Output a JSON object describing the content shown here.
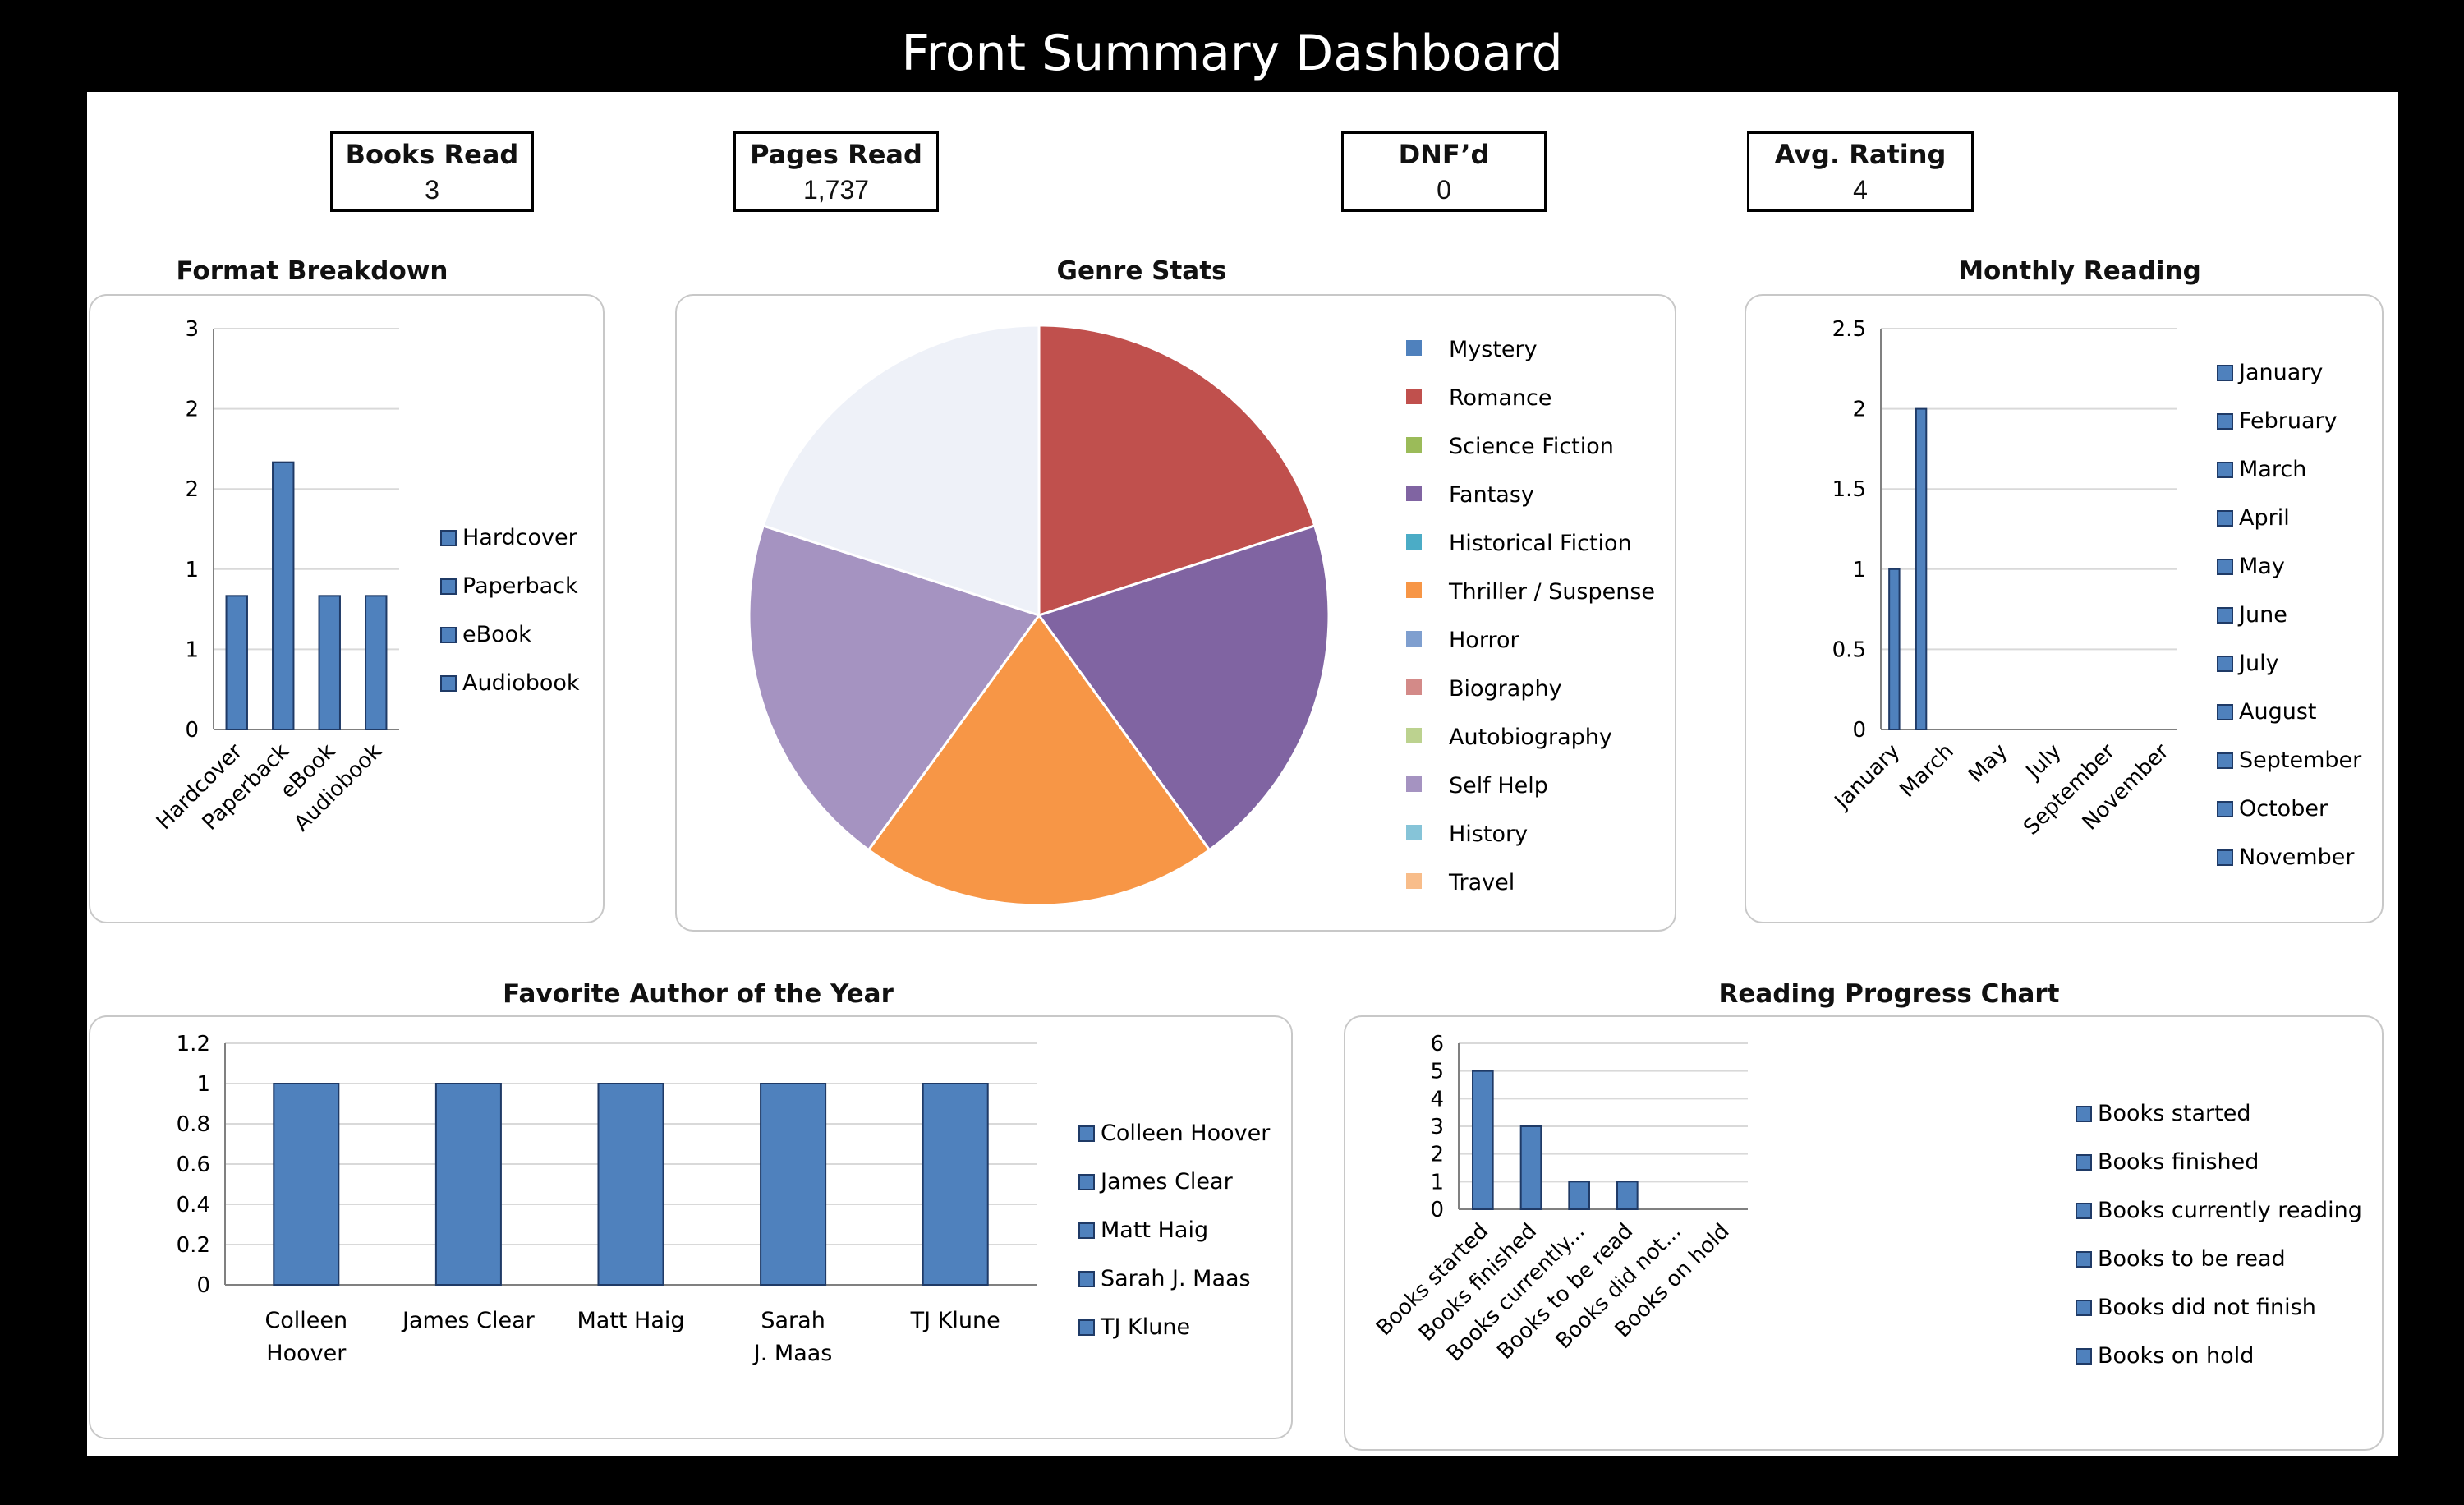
{
  "page": {
    "title": "Front Summary Dashboard"
  },
  "kpis": [
    {
      "label": "Books Read",
      "value": "3"
    },
    {
      "label": "Pages Read",
      "value": "1,737"
    },
    {
      "label": "DNF’d",
      "value": "0"
    },
    {
      "label": "Avg. Rating",
      "value": "4"
    }
  ],
  "colors": {
    "bar": "#4f81bd",
    "bar_edge": "#1f3a66",
    "grid": "#d9d9d9",
    "axis": "#808080"
  },
  "chart_data": [
    {
      "id": "format",
      "type": "bar",
      "title": "Format Breakdown",
      "categories": [
        "Hardcover",
        "Paperback",
        "eBook",
        "Audiobook"
      ],
      "values": [
        1,
        2,
        1,
        1
      ],
      "ylim": [
        0,
        3
      ],
      "yticks": [
        "0",
        "1",
        "1",
        "2",
        "2",
        "3"
      ],
      "legend": [
        "Hardcover",
        "Paperback",
        "eBook",
        "Audiobook"
      ],
      "legend_position": "right",
      "grid": true
    },
    {
      "id": "genre",
      "type": "pie",
      "title": "Genre Stats",
      "labels": [
        "Mystery",
        "Romance",
        "Science Fiction",
        "Fantasy",
        "Historical Fiction",
        "Thriller / Suspense",
        "Horror",
        "Biography",
        "Autobiography",
        "Self Help",
        "History",
        "Travel"
      ],
      "values": [
        0,
        1,
        0,
        1,
        0,
        1,
        0,
        0,
        0,
        1,
        0,
        1
      ],
      "colors": [
        "#4f81bd",
        "#c0504d",
        "#9bbb59",
        "#8064a2",
        "#4bacc6",
        "#f79646",
        "#7f9fcf",
        "#d38a88",
        "#bcd28f",
        "#a593c1",
        "#86c4d8",
        "#f8bd8a"
      ],
      "slice_colors_shown": [
        "#c0504d",
        "#8064a2",
        "#f79646",
        "#a593c1",
        "#eef1f8"
      ],
      "legend_position": "right"
    },
    {
      "id": "monthly",
      "type": "bar",
      "title": "Monthly Reading",
      "categories": [
        "January",
        "February",
        "March",
        "April",
        "May",
        "June",
        "July",
        "August",
        "September",
        "October",
        "November"
      ],
      "tick_labels": [
        "January",
        "March",
        "May",
        "July",
        "September",
        "November"
      ],
      "values": [
        1,
        2,
        0,
        0,
        0,
        0,
        0,
        0,
        0,
        0,
        0
      ],
      "ylim": [
        0,
        2.5
      ],
      "yticks": [
        "0",
        "0.5",
        "1",
        "1.5",
        "2",
        "2.5"
      ],
      "legend": [
        "January",
        "February",
        "March",
        "April",
        "May",
        "June",
        "July",
        "August",
        "September",
        "October",
        "November"
      ],
      "legend_position": "right",
      "grid": true
    },
    {
      "id": "author",
      "type": "bar",
      "title": "Favorite Author of the Year",
      "categories": [
        "Colleen Hoover",
        "James Clear",
        "Matt Haig",
        "Sarah J. Maas",
        "TJ Klune"
      ],
      "values": [
        1,
        1,
        1,
        1,
        1
      ],
      "ylim": [
        0,
        1.2
      ],
      "yticks": [
        "0",
        "0.2",
        "0.4",
        "0.6",
        "0.8",
        "1",
        "1.2"
      ],
      "legend": [
        "Colleen Hoover",
        "James Clear",
        "Matt Haig",
        "Sarah J. Maas",
        "TJ Klune"
      ],
      "legend_position": "right",
      "grid": true
    },
    {
      "id": "progress",
      "type": "bar",
      "title": "Reading Progress Chart",
      "categories": [
        "Books started",
        "Books finished",
        "Books currently reading",
        "Books to be read",
        "Books did not finish",
        "Books on hold"
      ],
      "tick_labels": [
        "Books started",
        "Books finished",
        "Books currently...",
        "Books to be read",
        "Books did not...",
        "Books on hold"
      ],
      "values": [
        5,
        3,
        1,
        1,
        0,
        0
      ],
      "ylim": [
        0,
        6
      ],
      "yticks": [
        "0",
        "1",
        "2",
        "3",
        "4",
        "5",
        "6"
      ],
      "legend": [
        "Books started",
        "Books finished",
        "Books currently reading",
        "Books to be read",
        "Books did not finish",
        "Books on hold"
      ],
      "legend_position": "right",
      "grid": true
    }
  ]
}
